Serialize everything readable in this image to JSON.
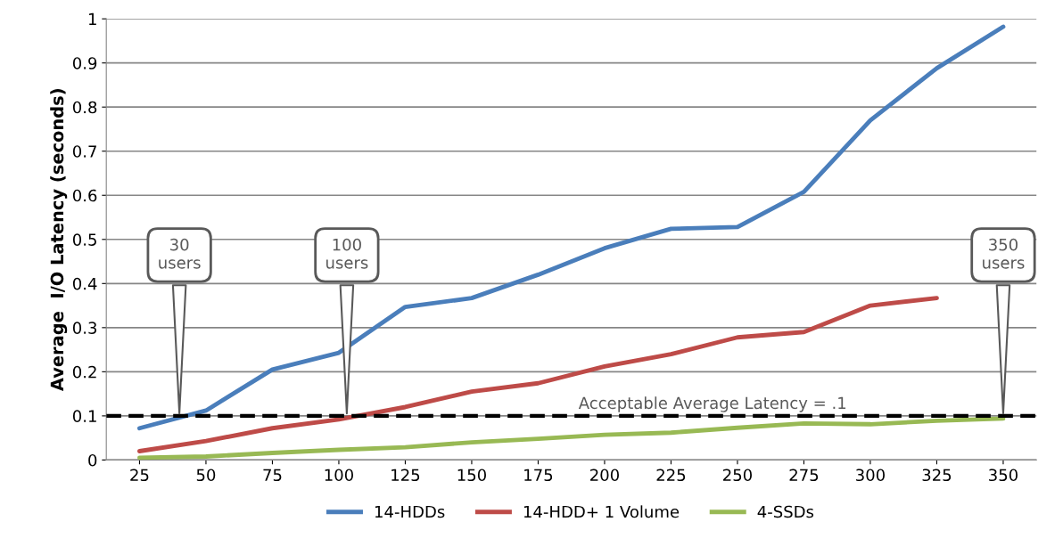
{
  "chart_data": {
    "type": "line",
    "ylabel": "Average  I/O Latency (seconds)",
    "x": [
      25,
      50,
      75,
      100,
      125,
      150,
      175,
      200,
      225,
      250,
      275,
      300,
      325,
      350
    ],
    "xlim": [
      12.5,
      362.5
    ],
    "xticks": [
      25,
      50,
      75,
      100,
      125,
      150,
      175,
      200,
      225,
      250,
      275,
      300,
      325,
      350
    ],
    "ylim": [
      0,
      1
    ],
    "yticks": [
      0,
      0.1,
      0.2,
      0.3,
      0.4,
      0.5,
      0.6,
      0.7,
      0.8,
      0.9,
      1
    ],
    "grid": "y",
    "legend": "bottom",
    "marker": "none",
    "line_style": "solid",
    "series": [
      {
        "name": "14-HDDs",
        "color": "#4a7ebb",
        "values": [
          0.072,
          0.112,
          0.205,
          0.243,
          0.347,
          0.367,
          0.42,
          0.48,
          0.524,
          0.528,
          0.608,
          0.77,
          0.888,
          0.982
        ]
      },
      {
        "name": "14-HDD+ 1 Volume",
        "color": "#be4b48",
        "values": [
          0.02,
          0.043,
          0.072,
          0.092,
          0.12,
          0.155,
          0.174,
          0.212,
          0.24,
          0.278,
          0.29,
          0.35,
          0.367,
          null
        ]
      },
      {
        "name": "4-SSDs",
        "color": "#98b954",
        "values": [
          0.005,
          0.008,
          0.016,
          0.023,
          0.029,
          0.04,
          0.048,
          0.057,
          0.062,
          0.073,
          0.083,
          0.081,
          0.089,
          0.094
        ]
      }
    ],
    "ref_lines": [
      {
        "axis": "y",
        "value": 0.1,
        "label": "Acceptable Average Latency = .1",
        "color": "#000000",
        "line_style": "dashed"
      }
    ],
    "annotations": [
      {
        "text": "30\nusers",
        "x": 40,
        "y": 0.1
      },
      {
        "text": "100\nusers",
        "x": 103,
        "y": 0.1
      },
      {
        "text": "350\nusers",
        "x": 350,
        "y": 0.1
      }
    ]
  }
}
